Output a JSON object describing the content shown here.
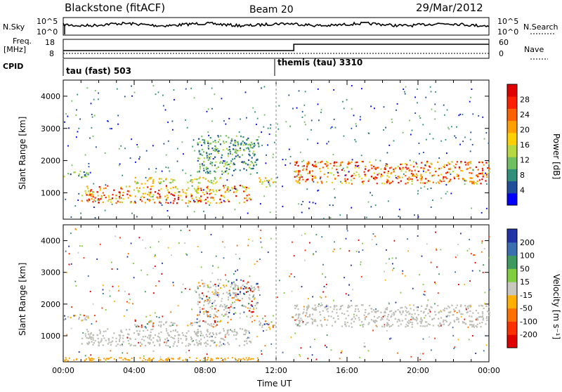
{
  "header": {
    "station": "Blackstone (fitACF)",
    "beam": "Beam 20",
    "date": "29/Mar/2012"
  },
  "colors": {
    "power_scale": [
      "#0000ff",
      "#1f4f9a",
      "#2f8f7a",
      "#70c060",
      "#b8d840",
      "#ffd000",
      "#ffa000",
      "#ff6000",
      "#ff2000",
      "#e00000"
    ],
    "velocity_scale": [
      "#2233aa",
      "#3a70b0",
      "#3f9a60",
      "#80cc40",
      "#c8c8c0",
      "#ffb000",
      "#ff7000",
      "#ff3000",
      "#e00000"
    ],
    "ground_scatter": "#bebeb6"
  },
  "chart_data": [
    {
      "name": "noise_panel",
      "type": "line",
      "left_label": "N.Sky",
      "right_label": "N.Search",
      "left_ticks": [
        "10^5",
        "10^0"
      ],
      "right_ticks": [
        "10^5",
        "10^0"
      ]
    },
    {
      "name": "freq_panel",
      "type": "line",
      "left_label": "Freq.",
      "left_unit": "[MHz]",
      "right_label": "Nave",
      "left_ticks": [
        "18",
        "8"
      ],
      "right_ticks": [
        "60",
        "0"
      ],
      "step_time_hours": 13.0
    },
    {
      "name": "cpid_panel",
      "type": "table",
      "label": "CPID",
      "modes": [
        {
          "start_hours": 0,
          "text": "tau (fast) 503"
        },
        {
          "start_hours": 12,
          "text": "themis (tau) 3310"
        }
      ]
    },
    {
      "name": "power_panel",
      "type": "heatmap",
      "ylabel": "Slant Range [km]",
      "yticks": [
        1000,
        2000,
        3000,
        4000
      ],
      "ylim": [
        180,
        4500
      ],
      "xlim_hours": [
        0,
        24
      ],
      "colorbar_label": "Power [dB]",
      "colorbar_ticks": [
        "28",
        "24",
        "20",
        "16",
        "12",
        "8",
        "4"
      ],
      "bands": [
        {
          "t0": 1.0,
          "t1": 10.6,
          "r0": 700,
          "r1": 1250,
          "level": "high"
        },
        {
          "t0": 0.0,
          "t1": 1.5,
          "r0": 1500,
          "r1": 1700,
          "level": "low"
        },
        {
          "t0": 4.0,
          "t1": 9.0,
          "r0": 1300,
          "r1": 1500,
          "level": "mid"
        },
        {
          "t0": 7.5,
          "t1": 11.0,
          "r0": 1600,
          "r1": 2800,
          "level": "low"
        },
        {
          "t0": 11.0,
          "t1": 12.0,
          "r0": 1200,
          "r1": 1500,
          "level": "mid"
        },
        {
          "t0": 13.0,
          "t1": 24.0,
          "r0": 1300,
          "r1": 2000,
          "level": "high"
        }
      ]
    },
    {
      "name": "velocity_panel",
      "type": "heatmap",
      "ylabel": "Slant Range [km]",
      "yticks": [
        1000,
        2000,
        3000,
        4000
      ],
      "ylim": [
        180,
        4500
      ],
      "xlabel": "Time UT",
      "xlim_hours": [
        0,
        24
      ],
      "xticks": [
        "00:00",
        "04:00",
        "08:00",
        "12:00",
        "16:00",
        "20:00",
        "00:00"
      ],
      "colorbar_label": "Velocity [m s⁻¹]",
      "colorbar_ticks": [
        "200",
        "100",
        "50",
        "15",
        "-15",
        "-50",
        "-100",
        "-200"
      ]
    }
  ]
}
